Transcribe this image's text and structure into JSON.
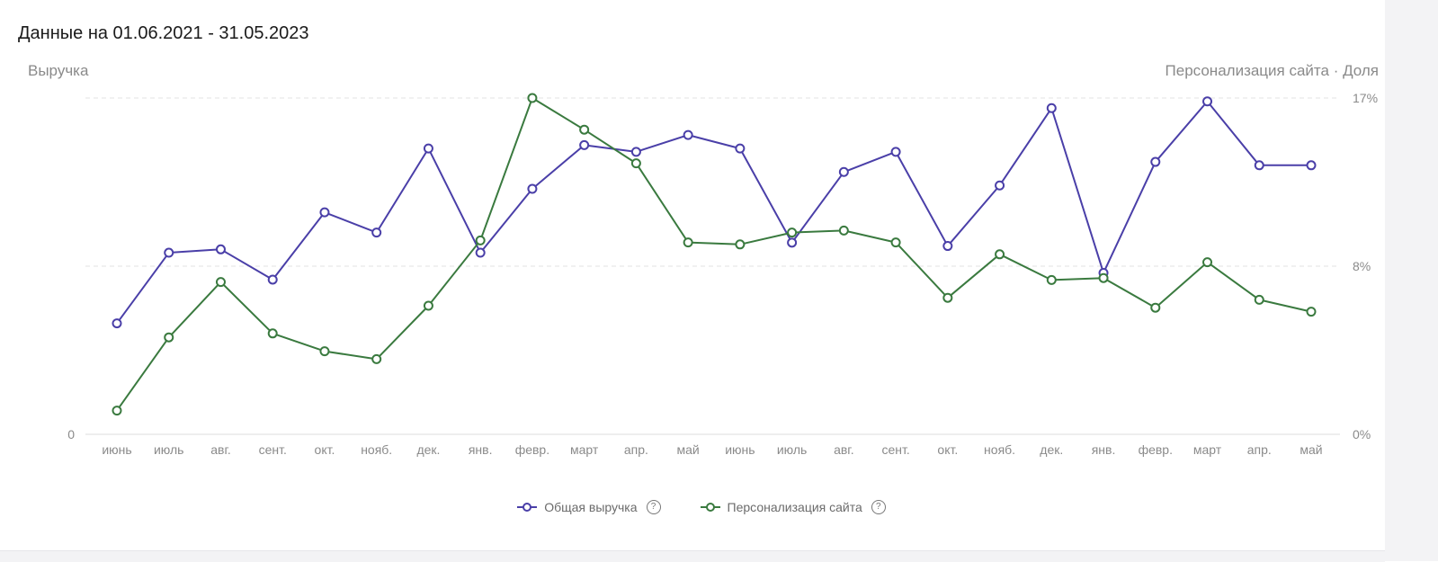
{
  "title": "Данные на 01.06.2021 - 31.05.2023",
  "left_axis_title": "Выручка",
  "right_axis_title": "Персонализация сайта · Доля",
  "colors": {
    "revenue": "#4a3fa8",
    "personalization": "#3a7a3f",
    "grid": "#e3e3e3"
  },
  "legend": [
    {
      "label": "Общая выручка",
      "color": "#4a3fa8",
      "icon": "help-icon"
    },
    {
      "label": "Персонализация сайта",
      "color": "#3a7a3f",
      "icon": "help-icon"
    }
  ],
  "chart_data": {
    "type": "line",
    "title": "Данные на 01.06.2021 - 31.05.2023",
    "categories": [
      "июнь",
      "июль",
      "авг.",
      "сент.",
      "окт.",
      "нояб.",
      "дек.",
      "янв.",
      "февр.",
      "март",
      "апр.",
      "май",
      "июнь",
      "июль",
      "авг.",
      "сент.",
      "окт.",
      "нояб.",
      "дек.",
      "янв.",
      "февр.",
      "март",
      "апр.",
      "май"
    ],
    "left_axis": {
      "label": "Выручка",
      "ticks": [
        "0"
      ],
      "range": [
        0,
        1
      ]
    },
    "right_axis": {
      "label": "Персонализация сайта · Доля",
      "ticks": [
        "0%",
        "8%",
        "17%"
      ],
      "tick_values": [
        0,
        8.5,
        17
      ],
      "range": [
        0,
        17
      ],
      "unit": "%"
    },
    "gridlines": true,
    "legend_position": "bottom",
    "series": [
      {
        "name": "Общая выручка",
        "axis": "left",
        "color": "#4a3fa8",
        "values": [
          0.33,
          0.54,
          0.55,
          0.46,
          0.66,
          0.6,
          0.85,
          0.54,
          0.73,
          0.86,
          0.84,
          0.89,
          0.85,
          0.57,
          0.78,
          0.84,
          0.56,
          0.74,
          0.97,
          0.48,
          0.81,
          0.99,
          0.8,
          0.8
        ]
      },
      {
        "name": "Персонализация сайта",
        "axis": "right",
        "color": "#3a7a3f",
        "values": [
          1.2,
          4.9,
          7.7,
          5.1,
          4.2,
          3.8,
          6.5,
          9.8,
          17.0,
          15.4,
          13.7,
          9.7,
          9.6,
          10.2,
          10.3,
          9.7,
          6.9,
          9.1,
          7.8,
          7.9,
          6.4,
          8.7,
          6.8,
          6.2
        ]
      }
    ]
  }
}
